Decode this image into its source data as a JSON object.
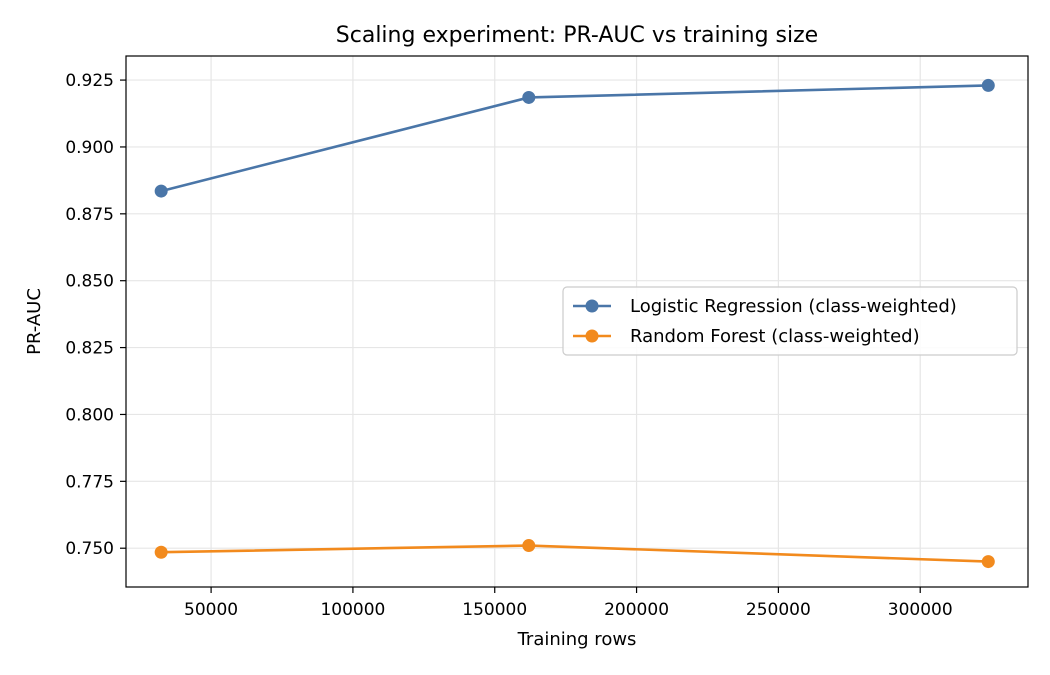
{
  "chart_data": {
    "type": "line",
    "title": "Scaling experiment: PR-AUC vs training size",
    "xlabel": "Training rows",
    "ylabel": "PR-AUC",
    "xlim": [
      20000,
      338000
    ],
    "ylim": [
      0.7355,
      0.934
    ],
    "xticks": [
      50000,
      100000,
      150000,
      200000,
      250000,
      300000
    ],
    "xtick_labels": [
      "50000",
      "100000",
      "150000",
      "200000",
      "250000",
      "300000"
    ],
    "yticks": [
      0.75,
      0.775,
      0.8,
      0.825,
      0.85,
      0.875,
      0.9,
      0.925
    ],
    "ytick_labels": [
      "0.750",
      "0.775",
      "0.800",
      "0.825",
      "0.850",
      "0.875",
      "0.900",
      "0.925"
    ],
    "grid": true,
    "legend_position": "center-right",
    "series": [
      {
        "name": "Logistic Regression (class-weighted)",
        "color": "#4a76a8",
        "x": [
          32400,
          162000,
          324000
        ],
        "y": [
          0.8835,
          0.9185,
          0.923
        ]
      },
      {
        "name": "Random Forest (class-weighted)",
        "color": "#f28a1d",
        "x": [
          32400,
          162000,
          324000
        ],
        "y": [
          0.7485,
          0.751,
          0.745
        ]
      }
    ]
  }
}
